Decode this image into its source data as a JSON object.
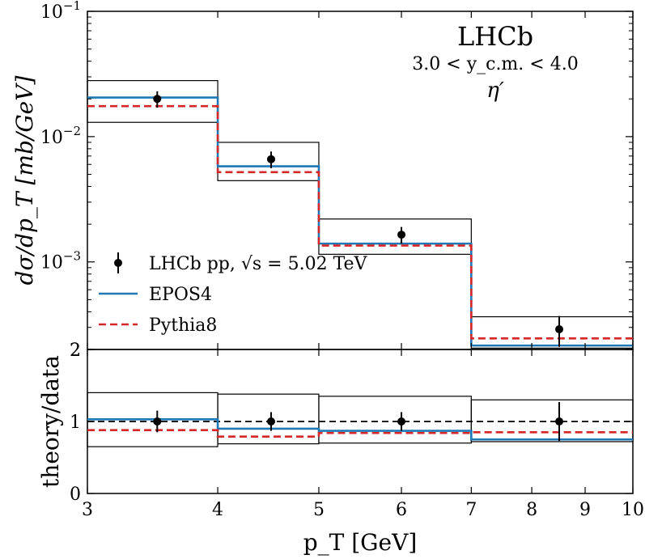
{
  "chart_data": [
    {
      "type": "line",
      "panel": "top",
      "yscale": "log",
      "ylabel": "dσ/dp_T [mb/GeV]",
      "xlim": [
        3,
        10
      ],
      "ylim": [
        0.0002,
        0.1
      ],
      "annotations": {
        "experiment": "LHCb",
        "rapidity": "3.0 < y_c.m. < 4.0",
        "particle": "η′"
      },
      "x_tick_labels": [
        "3",
        "4",
        "5",
        "6",
        "7",
        "8",
        "9",
        "10"
      ],
      "y_tick_labels": [
        {
          "value": 0.1,
          "base": "10",
          "exp": "−1"
        },
        {
          "value": 0.01,
          "base": "10",
          "exp": "−2"
        },
        {
          "value": 0.001,
          "base": "10",
          "exp": "−3"
        },
        {
          "value": 0.0002,
          "label": "2"
        }
      ],
      "bins": [
        [
          3,
          4
        ],
        [
          4,
          5
        ],
        [
          5,
          7
        ],
        [
          7,
          10
        ]
      ],
      "data": {
        "name": "LHCb pp, √s = 5.02 TeV",
        "x": [
          3.5,
          4.5,
          6,
          8.5
        ],
        "y": [
          0.02,
          0.0066,
          0.00165,
          0.00029
        ],
        "yerr": [
          0.003,
          0.001,
          0.00025,
          8e-05
        ],
        "syst_low": [
          0.013,
          0.00445,
          0.00115,
          0.000205
        ],
        "syst_high": [
          0.028,
          0.009,
          0.0022,
          0.000365
        ]
      },
      "series": [
        {
          "name": "EPOS4",
          "color": "#1f77b4",
          "style": "solid",
          "values": [
            0.0205,
            0.0058,
            0.0014,
            0.000215
          ]
        },
        {
          "name": "Pythia8",
          "color": "#d62728",
          "style": "dashed",
          "values": [
            0.0175,
            0.0052,
            0.00135,
            0.000245
          ]
        }
      ]
    },
    {
      "type": "line",
      "panel": "bottom",
      "ylabel": "theory/data",
      "xlabel": "p_T [GeV]",
      "xlim": [
        3,
        10
      ],
      "ylim": [
        0,
        2
      ],
      "y_tick_labels": [
        "0",
        "1",
        "2"
      ],
      "reference_line": 1.0,
      "bins": [
        [
          3,
          4
        ],
        [
          4,
          5
        ],
        [
          5,
          7
        ],
        [
          7,
          10
        ]
      ],
      "data": {
        "x": [
          3.5,
          4.5,
          6,
          8.5
        ],
        "y": [
          1.0,
          1.0,
          1.0,
          1.0
        ],
        "yerr": [
          0.15,
          0.13,
          0.13,
          0.27
        ],
        "syst_low": [
          0.65,
          0.69,
          0.7,
          0.72
        ],
        "syst_high": [
          1.4,
          1.38,
          1.35,
          1.3
        ]
      },
      "series": [
        {
          "name": "EPOS4",
          "color": "#1f77b4",
          "style": "solid",
          "values": [
            1.03,
            0.9,
            0.87,
            0.75
          ]
        },
        {
          "name": "Pythia8",
          "color": "#d62728",
          "style": "dashed",
          "values": [
            0.88,
            0.79,
            0.84,
            0.85
          ]
        }
      ]
    }
  ]
}
